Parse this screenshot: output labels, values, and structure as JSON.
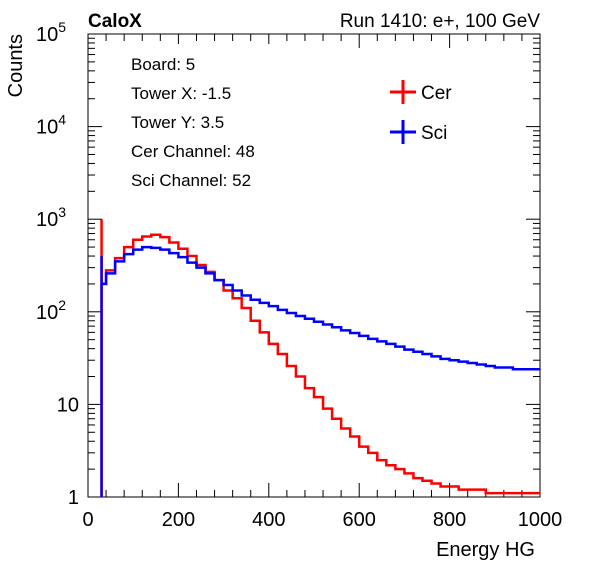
{
  "header": {
    "experiment": "CaloX",
    "run_info": "Run 1410: e+, 100 GeV"
  },
  "info_box": [
    "Board: 5",
    "Tower X: -1.5",
    "Tower Y: 3.5",
    "Cer Channel: 48",
    "Sci Channel: 52"
  ],
  "chart_data": {
    "type": "line",
    "title": "",
    "xlabel": "Energy HG",
    "ylabel": "Counts",
    "xlim": [
      0,
      1000
    ],
    "ylim": [
      1,
      100000
    ],
    "yscale": "log",
    "grid": false,
    "legend_position": "top-right",
    "x_ticks": [
      "0",
      "200",
      "400",
      "600",
      "800",
      "1000"
    ],
    "y_ticks": [
      "1",
      "10",
      "10^2",
      "10^3",
      "10^4",
      "10^5"
    ],
    "x": [
      30,
      40,
      60,
      80,
      100,
      120,
      140,
      160,
      180,
      200,
      220,
      240,
      260,
      280,
      300,
      320,
      340,
      360,
      380,
      400,
      420,
      440,
      460,
      480,
      500,
      520,
      540,
      560,
      580,
      600,
      620,
      640,
      660,
      680,
      700,
      720,
      740,
      760,
      780,
      800,
      820,
      840,
      860,
      880,
      900,
      920,
      940,
      960,
      980,
      1000
    ],
    "series": [
      {
        "name": "Cer",
        "color": "#ff0000",
        "values": [
          1000,
          200,
          280,
          380,
          500,
          600,
          650,
          680,
          640,
          560,
          480,
          400,
          320,
          270,
          220,
          170,
          140,
          110,
          80,
          60,
          45,
          35,
          26,
          20,
          15,
          12,
          9,
          7,
          5.5,
          4.5,
          3.5,
          3,
          2.5,
          2.2,
          2,
          1.8,
          1.6,
          1.5,
          1.4,
          1.3,
          1.3,
          1.2,
          1.2,
          1.2,
          1.1,
          1.1,
          1.1,
          1.1,
          1.1,
          1.1
        ]
      },
      {
        "name": "Sci",
        "color": "#0000ff",
        "values": [
          400,
          200,
          260,
          350,
          420,
          470,
          500,
          490,
          470,
          430,
          390,
          340,
          300,
          260,
          220,
          195,
          170,
          150,
          135,
          125,
          115,
          105,
          97,
          90,
          84,
          78,
          73,
          68,
          63,
          59,
          55,
          51,
          48,
          45,
          42,
          39,
          37,
          35,
          33,
          31,
          30,
          29,
          28,
          27,
          26,
          25,
          25,
          24,
          24,
          24
        ]
      }
    ]
  }
}
